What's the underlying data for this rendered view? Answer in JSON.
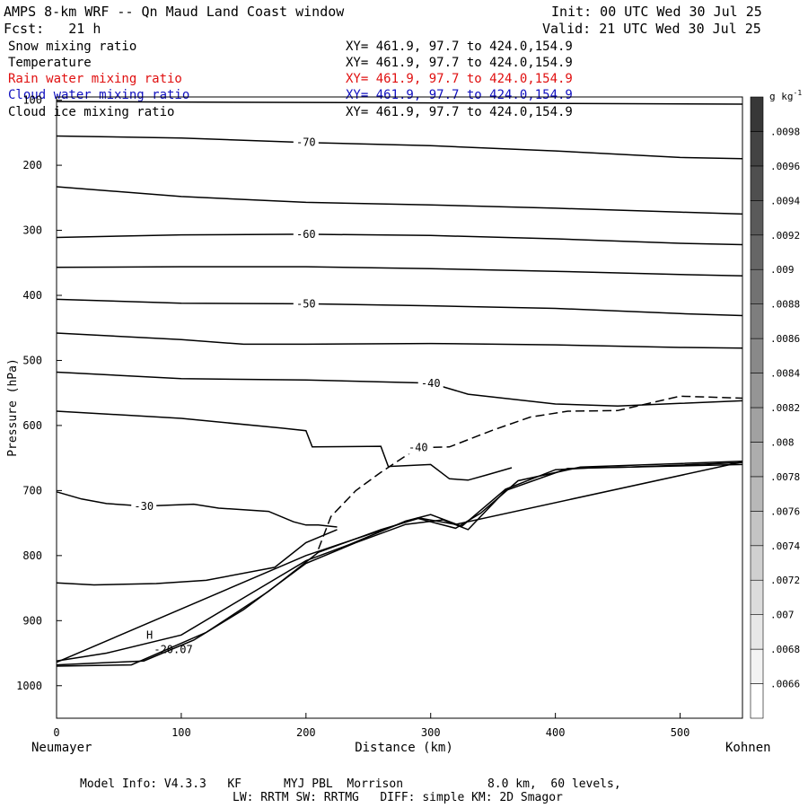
{
  "header": {
    "title": "AMPS 8-km WRF -- Qn Maud Land Coast window",
    "fcst": "Fcst:   21 h",
    "init": "Init: 00 UTC Wed 30 Jul 25",
    "valid": "Valid: 21 UTC Wed 30 Jul 25"
  },
  "fields": [
    {
      "name": "Snow mixing ratio",
      "xy": "XY= 461.9, 97.7 to 424.0,154.9",
      "color": "#000000"
    },
    {
      "name": "Temperature",
      "xy": "XY= 461.9, 97.7 to 424.0,154.9",
      "color": "#000000"
    },
    {
      "name": "Rain water mixing ratio",
      "xy": "XY= 461.9, 97.7 to 424.0,154.9",
      "color": "#e01010"
    },
    {
      "name": "Cloud water mixing ratio",
      "xy": "XY= 461.9, 97.7 to 424.0,154.9",
      "color": "#1010c0"
    },
    {
      "name": "Cloud ice mixing ratio",
      "xy": "XY= 461.9, 97.7 to 424.0,154.9",
      "color": "#000000"
    }
  ],
  "footer": {
    "line1": "Model Info: V4.3.3   KF      MYJ PBL  Morrison            8.0 km,  60 levels,",
    "line2": "LW: RRTM SW: RRTMG   DIFF: simple KM: 2D Smagor"
  },
  "chart_data": {
    "type": "line",
    "title": "",
    "xlabel": "Distance (km)",
    "ylabel": "Pressure (hPa)",
    "xlim": [
      0,
      550
    ],
    "ylim": [
      1050,
      95
    ],
    "x_ticks": [
      0,
      100,
      200,
      300,
      400,
      500
    ],
    "y_ticks": [
      100,
      200,
      300,
      400,
      500,
      600,
      700,
      800,
      900,
      1000
    ],
    "left_endpoint": "Neumayer",
    "right_endpoint": "Kohnen",
    "colorbar": {
      "unit_label": "g kg",
      "unit_exponent": "-1",
      "levels": [
        ".0066",
        ".0068",
        ".007",
        ".0072",
        ".0074",
        ".0076",
        ".0078",
        ".008",
        ".0082",
        ".0084",
        ".0086",
        ".0088",
        ".009",
        ".0092",
        ".0094",
        ".0096",
        ".0098"
      ]
    },
    "series": [
      {
        "label": "",
        "points": [
          [
            0,
            102
          ],
          [
            550,
            106
          ]
        ]
      },
      {
        "label": "-70",
        "points": [
          [
            0,
            155
          ],
          [
            100,
            158
          ],
          [
            200,
            165
          ],
          [
            300,
            170
          ],
          [
            400,
            178
          ],
          [
            500,
            188
          ],
          [
            550,
            190
          ]
        ]
      },
      {
        "label": "",
        "points": [
          [
            0,
            233
          ],
          [
            100,
            248
          ],
          [
            200,
            257
          ],
          [
            300,
            261
          ],
          [
            400,
            266
          ],
          [
            500,
            272
          ],
          [
            550,
            275
          ]
        ]
      },
      {
        "label": "-60",
        "points": [
          [
            0,
            311
          ],
          [
            100,
            307
          ],
          [
            200,
            306
          ],
          [
            300,
            308
          ],
          [
            400,
            313
          ],
          [
            500,
            320
          ],
          [
            550,
            322
          ]
        ]
      },
      {
        "label": "",
        "points": [
          [
            0,
            357
          ],
          [
            100,
            356
          ],
          [
            200,
            356
          ],
          [
            300,
            359
          ],
          [
            400,
            363
          ],
          [
            500,
            368
          ],
          [
            550,
            370
          ]
        ]
      },
      {
        "label": "-50",
        "points": [
          [
            0,
            406
          ],
          [
            100,
            412
          ],
          [
            200,
            413
          ],
          [
            300,
            416
          ],
          [
            400,
            420
          ],
          [
            500,
            428
          ],
          [
            550,
            431
          ]
        ]
      },
      {
        "label": "",
        "points": [
          [
            0,
            458
          ],
          [
            100,
            468
          ],
          [
            150,
            475
          ],
          [
            200,
            475
          ],
          [
            300,
            474
          ],
          [
            400,
            476
          ],
          [
            500,
            480
          ],
          [
            550,
            481
          ]
        ]
      },
      {
        "label": "-40",
        "points": [
          [
            0,
            518
          ],
          [
            100,
            528
          ],
          [
            200,
            530
          ],
          [
            300,
            535
          ],
          [
            330,
            552
          ],
          [
            400,
            567
          ],
          [
            450,
            570
          ],
          [
            500,
            566
          ],
          [
            550,
            562
          ]
        ]
      },
      {
        "label": "",
        "points": [
          [
            0,
            578
          ],
          [
            100,
            589
          ],
          [
            180,
            604
          ],
          [
            200,
            608
          ],
          [
            205,
            633
          ],
          [
            260,
            632
          ],
          [
            266,
            663
          ],
          [
            300,
            660
          ],
          [
            315,
            682
          ],
          [
            330,
            684
          ],
          [
            345,
            676
          ],
          [
            365,
            665
          ]
        ]
      },
      {
        "label": "-30",
        "points": [
          [
            0,
            702
          ],
          [
            20,
            713
          ],
          [
            40,
            720
          ],
          [
            70,
            724
          ],
          [
            110,
            721
          ],
          [
            130,
            727
          ],
          [
            170,
            732
          ],
          [
            190,
            748
          ],
          [
            200,
            753
          ],
          [
            210,
            753
          ],
          [
            225,
            756
          ]
        ]
      },
      {
        "label": "",
        "points": [
          [
            0,
            842
          ],
          [
            30,
            845
          ],
          [
            80,
            843
          ],
          [
            120,
            838
          ],
          [
            175,
            818
          ],
          [
            200,
            780
          ],
          [
            225,
            760
          ]
        ]
      },
      {
        "label": "",
        "points": [
          [
            0,
            962
          ],
          [
            40,
            950
          ],
          [
            100,
            922
          ],
          [
            150,
            865
          ],
          [
            200,
            808
          ],
          [
            235,
            783
          ],
          [
            280,
            747
          ],
          [
            300,
            737
          ],
          [
            325,
            755
          ],
          [
            360,
            698
          ],
          [
            400,
            668
          ],
          [
            430,
            665
          ],
          [
            460,
            664
          ],
          [
            500,
            661
          ],
          [
            550,
            657
          ]
        ]
      },
      {
        "label": "",
        "points": [
          [
            0,
            970
          ],
          [
            60,
            968
          ],
          [
            120,
            918
          ],
          [
            170,
            855
          ],
          [
            210,
            795
          ],
          [
            260,
            760
          ],
          [
            290,
            743
          ],
          [
            320,
            758
          ],
          [
            340,
            735
          ],
          [
            370,
            685
          ],
          [
            420,
            664
          ],
          [
            550,
            655
          ]
        ]
      },
      {
        "label": "",
        "points": [
          [
            0,
            968
          ],
          [
            70,
            962
          ],
          [
            110,
            930
          ],
          [
            150,
            883
          ],
          [
            200,
            812
          ],
          [
            240,
            780
          ],
          [
            280,
            752
          ],
          [
            310,
            745
          ],
          [
            330,
            760
          ],
          [
            360,
            700
          ],
          [
            410,
            666
          ],
          [
            550,
            660
          ]
        ]
      },
      {
        "label": "",
        "points": [
          [
            0,
            964
          ],
          [
            200,
            800
          ],
          [
            290,
            742
          ],
          [
            320,
            752
          ],
          [
            550,
            656
          ]
        ]
      }
    ],
    "dashed_series": [
      {
        "label": "-40",
        "points": [
          [
            210,
            790
          ],
          [
            220,
            740
          ],
          [
            240,
            700
          ],
          [
            260,
            672
          ],
          [
            290,
            634
          ],
          [
            315,
            633
          ],
          [
            350,
            607
          ],
          [
            380,
            587
          ],
          [
            410,
            578
          ],
          [
            450,
            577
          ],
          [
            500,
            555
          ],
          [
            550,
            558
          ]
        ]
      }
    ],
    "annotations": [
      {
        "text": "H",
        "x": 72,
        "y": 928
      },
      {
        "text": "-20.07",
        "x": 78,
        "y": 950
      }
    ]
  }
}
